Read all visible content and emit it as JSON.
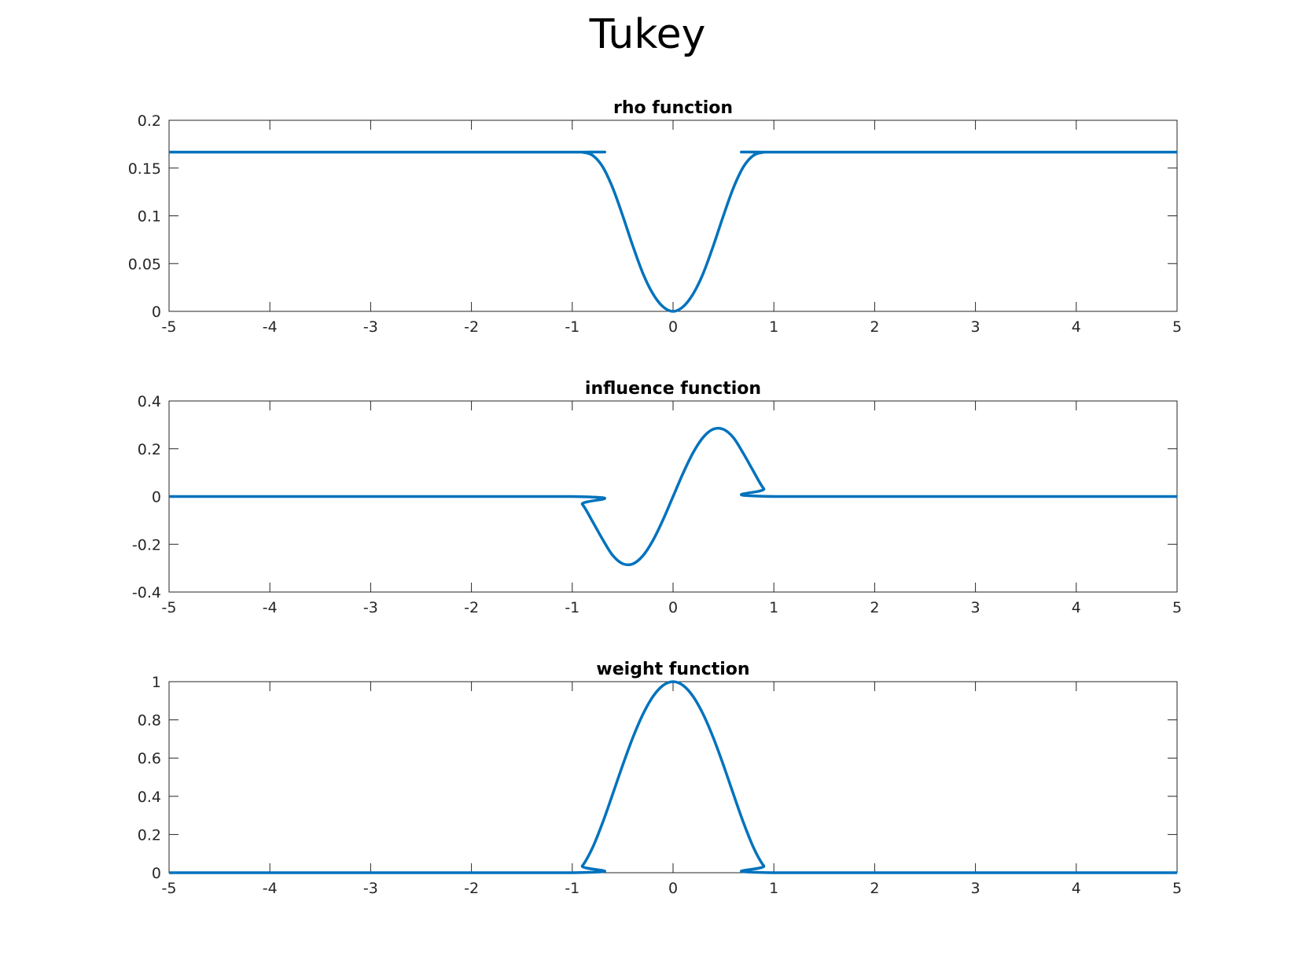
{
  "figure": {
    "title": "Tukey"
  },
  "colors": {
    "line": "#0072bd",
    "axis": "#262626",
    "background": "#ffffff"
  },
  "chart_data": [
    {
      "type": "line",
      "title": "rho function",
      "xlabel": "",
      "ylabel": "",
      "xlim": [
        -5,
        5
      ],
      "ylim": [
        0,
        0.2
      ],
      "xticks": [
        "-5",
        "-4",
        "-3",
        "-2",
        "-1",
        "0",
        "1",
        "2",
        "3",
        "4",
        "5"
      ],
      "yticks": [
        "0",
        "0.05",
        "0.1",
        "0.15",
        "0.2"
      ],
      "grid": false,
      "x": [
        -5,
        -1,
        -0.9,
        -0.8,
        -0.7,
        -0.6,
        -0.5,
        -0.4,
        -0.3,
        -0.2,
        -0.1,
        0,
        0.1,
        0.2,
        0.3,
        0.4,
        0.5,
        0.6,
        0.7,
        0.8,
        0.9,
        1,
        5
      ],
      "values": [
        0.1667,
        0.1667,
        0.1665,
        0.1634,
        0.1516,
        0.1296,
        0.1003,
        0.0688,
        0.04,
        0.0184,
        0.0049,
        0,
        0.0049,
        0.0184,
        0.04,
        0.0688,
        0.1003,
        0.1296,
        0.1516,
        0.1634,
        0.1665,
        0.1667,
        0.1667
      ]
    },
    {
      "type": "line",
      "title": "influence function",
      "xlabel": "",
      "ylabel": "",
      "xlim": [
        -5,
        5
      ],
      "ylim": [
        -0.4,
        0.4
      ],
      "xticks": [
        "-5",
        "-4",
        "-3",
        "-2",
        "-1",
        "0",
        "1",
        "2",
        "3",
        "4",
        "5"
      ],
      "yticks": [
        "-0.4",
        "-0.2",
        "0",
        "0.2",
        "0.4"
      ],
      "grid": false,
      "x": [
        -5,
        -1,
        -0.9,
        -0.8,
        -0.7,
        -0.6,
        -0.5,
        -0.4,
        -0.3,
        -0.2,
        -0.1,
        0,
        0.1,
        0.2,
        0.3,
        0.4,
        0.5,
        0.6,
        0.7,
        0.8,
        0.9,
        1,
        5
      ],
      "values": [
        0,
        0,
        -0.0325,
        -0.1037,
        -0.1785,
        -0.2458,
        -0.2813,
        -0.2822,
        -0.2484,
        -0.1843,
        -0.098,
        0,
        0.098,
        0.1843,
        0.2484,
        0.2822,
        0.2813,
        0.2458,
        0.1785,
        0.1037,
        0.0325,
        0,
        0
      ]
    },
    {
      "type": "line",
      "title": "weight function",
      "xlabel": "",
      "ylabel": "",
      "xlim": [
        -5,
        5
      ],
      "ylim": [
        0,
        1
      ],
      "xticks": [
        "-5",
        "-4",
        "-3",
        "-2",
        "-1",
        "0",
        "1",
        "2",
        "3",
        "4",
        "5"
      ],
      "yticks": [
        "0",
        "0.2",
        "0.4",
        "0.6",
        "0.8",
        "1"
      ],
      "grid": false,
      "x": [
        -5,
        -1,
        -0.9,
        -0.8,
        -0.7,
        -0.6,
        -0.5,
        -0.4,
        -0.3,
        -0.2,
        -0.1,
        0,
        0.1,
        0.2,
        0.3,
        0.4,
        0.5,
        0.6,
        0.7,
        0.8,
        0.9,
        1,
        5
      ],
      "values": [
        0,
        0,
        0.0361,
        0.1296,
        0.2601,
        0.4096,
        0.5625,
        0.7056,
        0.8281,
        0.9216,
        0.9801,
        1,
        0.9801,
        0.9216,
        0.8281,
        0.7056,
        0.5625,
        0.4096,
        0.2601,
        0.1296,
        0.0361,
        0,
        0
      ]
    }
  ]
}
